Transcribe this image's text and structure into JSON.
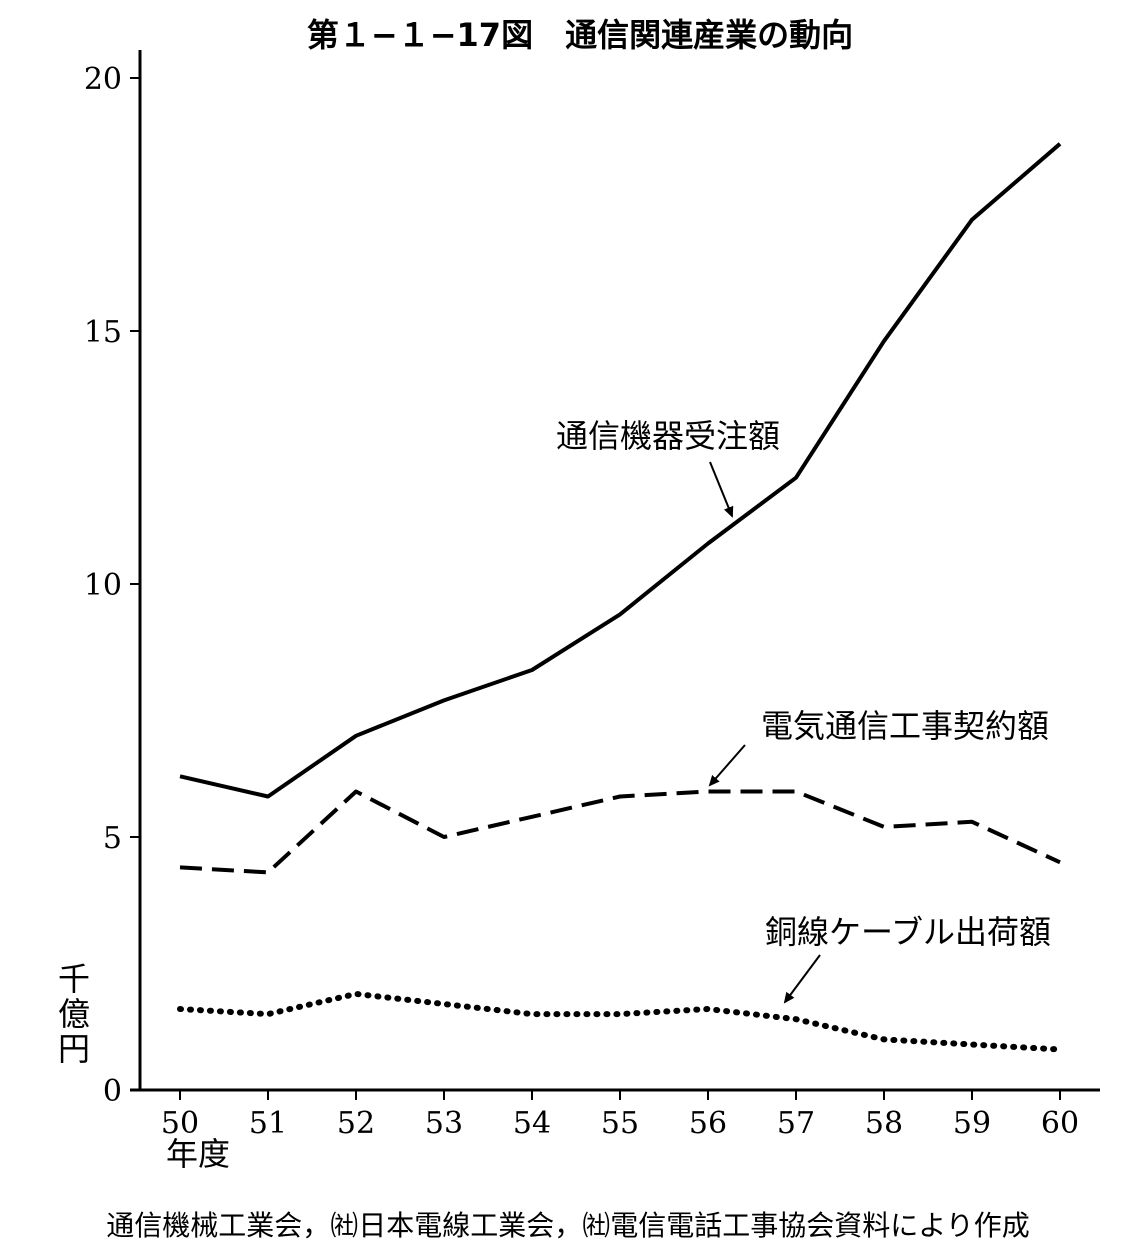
{
  "chart_data": {
    "type": "line",
    "title": "第１−１−17図　通信関連産業の動向",
    "ylabel": "千億円",
    "xlabel": "年度",
    "categories": [
      "50",
      "51",
      "52",
      "53",
      "54",
      "55",
      "56",
      "57",
      "58",
      "59",
      "60"
    ],
    "yticks": [
      "0",
      "5",
      "10",
      "15",
      "20"
    ],
    "ylim": [
      0,
      20.5
    ],
    "grid": false,
    "series": [
      {
        "name": "通信機器受注額",
        "style": "solid",
        "values": [
          6.2,
          5.8,
          7.0,
          7.7,
          8.3,
          9.4,
          10.8,
          12.1,
          14.8,
          17.2,
          18.7
        ]
      },
      {
        "name": "電気通信工事契約額",
        "style": "dashed",
        "values": [
          4.4,
          4.3,
          5.9,
          5.0,
          5.4,
          5.8,
          5.9,
          5.9,
          5.2,
          5.3,
          4.5
        ]
      },
      {
        "name": "銅線ケーブル出荷額",
        "style": "dotted",
        "values": [
          1.6,
          1.5,
          1.9,
          1.7,
          1.5,
          1.5,
          1.6,
          1.4,
          1.0,
          0.9,
          0.8
        ]
      }
    ],
    "source": "通信機械工業会，㈳日本電線工業会，㈳電信電話工事協会資料により作成"
  }
}
